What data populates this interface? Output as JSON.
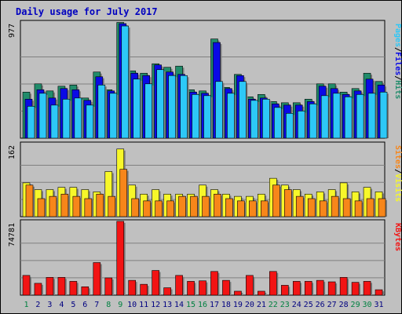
{
  "chart_data": {
    "type": "bar",
    "title": "Daily usage for July 2017",
    "categories": [
      "1",
      "2",
      "3",
      "4",
      "5",
      "6",
      "7",
      "8",
      "9",
      "10",
      "11",
      "12",
      "13",
      "14",
      "15",
      "16",
      "17",
      "18",
      "19",
      "20",
      "21",
      "22",
      "23",
      "24",
      "25",
      "26",
      "27",
      "28",
      "29",
      "30",
      "31"
    ],
    "weekend_days": [
      "1",
      "8",
      "9",
      "15",
      "16",
      "22",
      "23",
      "29",
      "30"
    ],
    "colors": {
      "background": "#c0c0c0",
      "frame": "#000000",
      "grid": "#808080",
      "hits": "#218c6b",
      "files": "#0a0ae6",
      "pages": "#2dc8f7",
      "visits": "#f7f72a",
      "sites": "#f7861a",
      "kbytes": "#f21414",
      "title": "#0000c0",
      "weekday_label": "#000080",
      "weekend_label": "#008040",
      "separator": "#000000"
    },
    "panels": [
      {
        "name": "requests",
        "ymax_label": "977",
        "ymax": 977,
        "legend": [
          {
            "text": "Pages",
            "color": "#2dc8f7"
          },
          {
            "text": "/",
            "color": "#000000"
          },
          {
            "text": "Files",
            "color": "#0a0ae6"
          },
          {
            "text": "/",
            "color": "#000000"
          },
          {
            "text": "Hits",
            "color": "#218c6b"
          }
        ],
        "series": [
          {
            "name": "Hits",
            "color": "#218c6b",
            "values": [
              390,
              460,
              400,
              440,
              450,
              340,
              560,
              410,
              980,
              570,
              550,
              630,
              600,
              610,
              410,
              400,
              840,
              430,
              540,
              350,
              370,
              310,
              300,
              300,
              330,
              460,
              460,
              390,
              420,
              550,
              480
            ]
          },
          {
            "name": "Files",
            "color": "#0a0ae6",
            "values": [
              330,
              410,
              340,
              420,
              410,
              320,
              520,
              400,
              970,
              550,
              530,
              620,
              560,
              540,
              390,
              380,
              810,
              420,
              530,
              330,
              340,
              290,
              280,
              280,
              310,
              440,
              420,
              370,
              400,
              500,
              450
            ]
          },
          {
            "name": "Pages",
            "color": "#2dc8f7",
            "values": [
              270,
              380,
              280,
              330,
              340,
              280,
              450,
              380,
              950,
              500,
              460,
              580,
              530,
              530,
              370,
              360,
              480,
              380,
              480,
              320,
              330,
              260,
              210,
              230,
              290,
              360,
              380,
              350,
              370,
              380,
              390
            ]
          }
        ]
      },
      {
        "name": "visitors",
        "ymax_label": "162",
        "ymax": 162,
        "legend": [
          {
            "text": "Sites",
            "color": "#f7861a"
          },
          {
            "text": "/",
            "color": "#000000"
          },
          {
            "text": "Visits",
            "color": "#f7f72a"
          }
        ],
        "series": [
          {
            "name": "Visits",
            "color": "#f7f72a",
            "values": [
              75,
              60,
              60,
              65,
              65,
              60,
              55,
              100,
              150,
              70,
              50,
              60,
              50,
              50,
              50,
              70,
              60,
              50,
              45,
              45,
              50,
              85,
              70,
              60,
              50,
              55,
              60,
              75,
              55,
              65,
              55
            ]
          },
          {
            "name": "Sites",
            "color": "#f7861a",
            "values": [
              70,
              40,
              45,
              50,
              45,
              40,
              50,
              45,
              105,
              40,
              35,
              35,
              35,
              45,
              45,
              45,
              50,
              40,
              35,
              35,
              35,
              70,
              60,
              45,
              40,
              35,
              45,
              40,
              35,
              40,
              40
            ]
          }
        ]
      },
      {
        "name": "kbytes",
        "ymax_label": "74781",
        "ymax": 74781,
        "legend": [
          {
            "text": "KBytes",
            "color": "#f21414"
          }
        ],
        "series": [
          {
            "name": "KBytes",
            "color": "#f21414",
            "values": [
              20000,
              12000,
              18000,
              18000,
              14000,
              8500,
              33000,
              17500,
              74781,
              15000,
              11000,
              25000,
              7500,
              20000,
              14000,
              14500,
              24000,
              15000,
              4000,
              20000,
              4000,
              24000,
              10000,
              14000,
              14000,
              15000,
              13500,
              18000,
              13000,
              14000,
              5500
            ]
          }
        ]
      }
    ]
  }
}
